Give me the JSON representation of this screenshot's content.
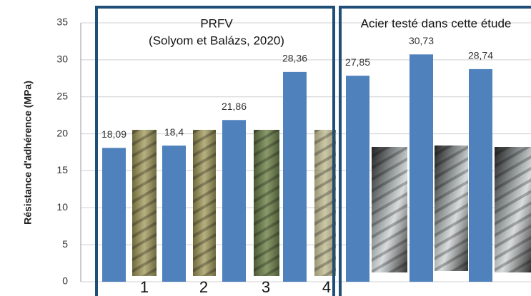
{
  "chart_data": {
    "type": "bar",
    "y_label": "Résistance d'adhérence (MPa)",
    "annotations": [
      "PRFV",
      "(Solyom et Balázs, 2020)",
      "Acier testé dans cette étude"
    ],
    "specimen_labels": [
      "1",
      "2",
      "3",
      "4"
    ],
    "categories": [
      null,
      null,
      null,
      null,
      null,
      null,
      null
    ],
    "values": [
      18.09,
      18.4,
      21.86,
      28.36,
      27.85,
      30.73,
      28.74
    ],
    "value_labels": [
      "18,09",
      "18,4",
      "21,86",
      "28,36",
      "27,85",
      "30,73",
      "28,74"
    ],
    "color": "#4f81bd",
    "ylim": [
      0,
      35
    ],
    "yticks": [
      0,
      5,
      10,
      15,
      20,
      25,
      30,
      35
    ],
    "grid": true
  }
}
